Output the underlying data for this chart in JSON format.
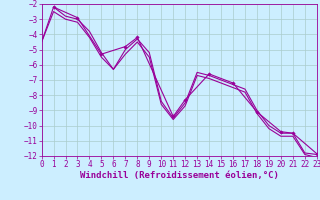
{
  "bg_color": "#cceeff",
  "grid_color": "#aacccc",
  "line_color": "#990099",
  "marker_color": "#990099",
  "xlabel": "Windchill (Refroidissement éolien,°C)",
  "xlim": [
    0,
    23
  ],
  "ylim": [
    -12,
    -2
  ],
  "xticks": [
    0,
    1,
    2,
    3,
    4,
    5,
    6,
    7,
    8,
    9,
    10,
    11,
    12,
    13,
    14,
    15,
    16,
    17,
    18,
    19,
    20,
    21,
    22,
    23
  ],
  "yticks": [
    -2,
    -3,
    -4,
    -5,
    -6,
    -7,
    -8,
    -9,
    -10,
    -11,
    -12
  ],
  "series1_x": [
    0,
    1,
    2,
    3,
    4,
    5,
    6,
    7,
    8,
    9,
    10,
    11,
    12,
    13,
    14,
    15,
    16,
    17,
    18,
    19,
    20,
    21,
    22,
    23
  ],
  "series1_y": [
    -4.5,
    -2.2,
    -2.8,
    -3.0,
    -3.8,
    -5.2,
    -6.3,
    -5.0,
    -4.3,
    -5.2,
    -8.4,
    -9.5,
    -8.5,
    -6.5,
    -6.7,
    -7.0,
    -7.3,
    -7.6,
    -9.0,
    -10.0,
    -10.5,
    -10.5,
    -11.8,
    -11.9
  ],
  "series2_x": [
    0,
    1,
    2,
    3,
    4,
    5,
    6,
    7,
    8,
    9,
    10,
    11,
    12,
    13,
    14,
    15,
    16,
    17,
    18,
    19,
    20,
    21,
    22,
    23
  ],
  "series2_y": [
    -4.5,
    -2.5,
    -3.0,
    -3.2,
    -4.2,
    -5.5,
    -6.3,
    -5.3,
    -4.5,
    -5.5,
    -8.6,
    -9.6,
    -8.7,
    -6.7,
    -6.9,
    -7.2,
    -7.5,
    -7.8,
    -9.2,
    -10.2,
    -10.7,
    -10.7,
    -11.9,
    -12.1
  ],
  "series3_x": [
    1,
    3,
    5,
    7,
    8,
    11,
    12,
    14,
    16,
    18,
    20,
    21,
    23
  ],
  "series3_y": [
    -2.2,
    -2.9,
    -5.3,
    -4.8,
    -4.2,
    -9.4,
    -8.3,
    -6.6,
    -7.2,
    -9.1,
    -10.4,
    -10.5,
    -11.85
  ],
  "font_size_ticks": 5.5,
  "font_size_label": 6.5,
  "linewidth": 0.8,
  "markersize": 1.8
}
